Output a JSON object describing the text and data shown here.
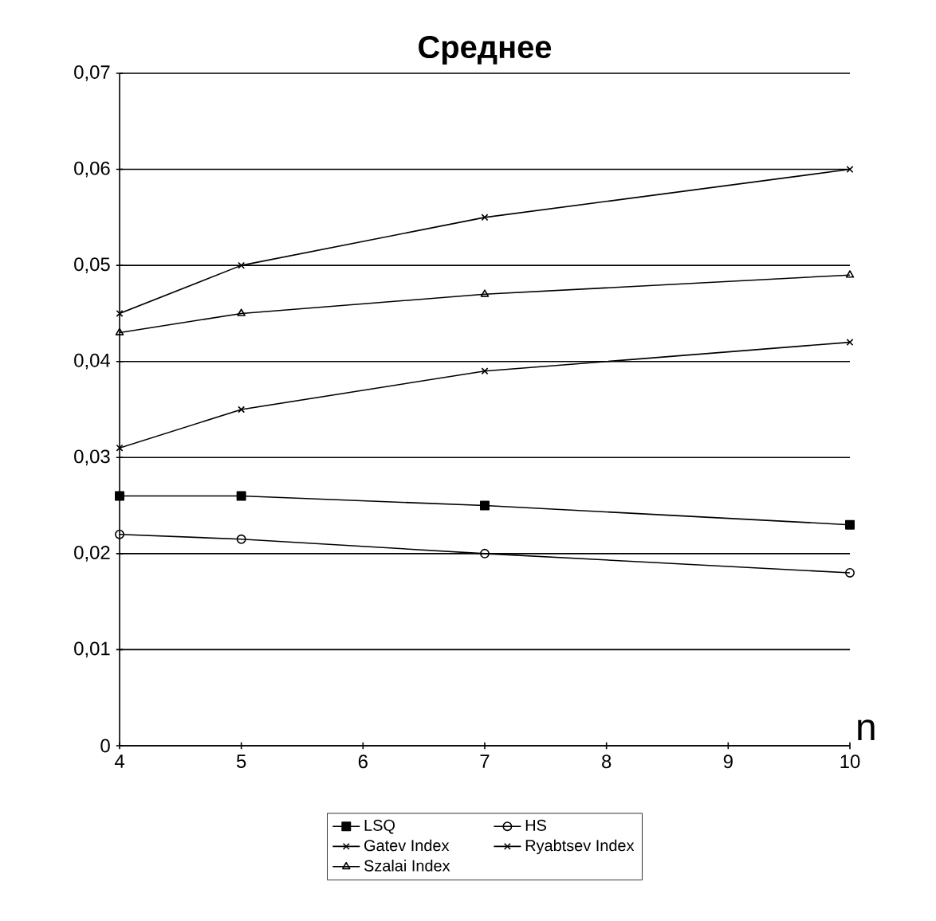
{
  "chart_data": {
    "type": "line",
    "title": "Среднее",
    "xlabel": "n",
    "x": [
      4,
      5,
      7,
      10
    ],
    "series": [
      {
        "name": "LSQ",
        "color": "#000000",
        "marker": "square",
        "values": [
          0.026,
          0.026,
          0.025,
          0.023
        ]
      },
      {
        "name": "HS",
        "color": "#000000",
        "marker": "circle",
        "values": [
          0.022,
          0.0215,
          0.02,
          0.018
        ]
      },
      {
        "name": "Gatev Index",
        "color": "#000000",
        "marker": "cross",
        "values": [
          0.045,
          0.05,
          0.055,
          0.06
        ]
      },
      {
        "name": "Ryabtsev Index",
        "color": "#000000",
        "marker": "cross",
        "values": [
          0.031,
          0.035,
          0.039,
          0.042
        ]
      },
      {
        "name": "Szalai Index",
        "color": "#000000",
        "marker": "triangle",
        "values": [
          0.043,
          0.045,
          0.047,
          0.049
        ]
      }
    ],
    "xlim": [
      4,
      10
    ],
    "xticks": [
      4,
      5,
      6,
      7,
      8,
      9,
      10
    ],
    "ylim": [
      0,
      0.07
    ],
    "yticks": [
      {
        "value": 0,
        "label": "0"
      },
      {
        "value": 0.01,
        "label": "0,01"
      },
      {
        "value": 0.02,
        "label": "0,02"
      },
      {
        "value": 0.03,
        "label": "0,03"
      },
      {
        "value": 0.04,
        "label": "0,04"
      },
      {
        "value": 0.05,
        "label": "0,05"
      },
      {
        "value": 0.06,
        "label": "0,06"
      },
      {
        "value": 0.07,
        "label": "0,07"
      }
    ],
    "grid": "y",
    "legend": "bottom",
    "line_style": "solid"
  }
}
